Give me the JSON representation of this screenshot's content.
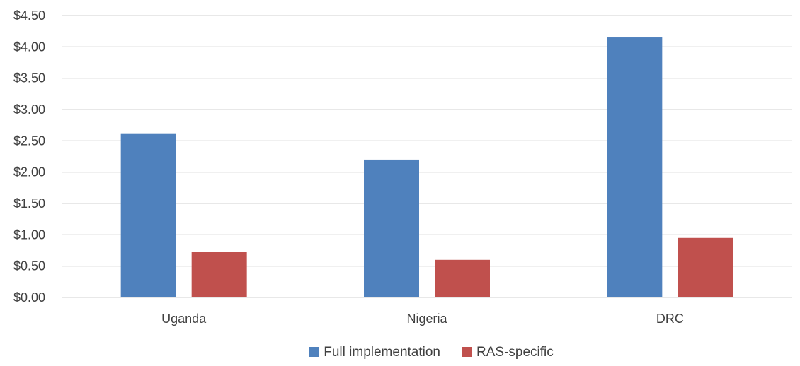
{
  "chart_data": {
    "type": "bar",
    "title": "",
    "xlabel": "",
    "ylabel": "",
    "categories": [
      "Uganda",
      "Nigeria",
      "DRC"
    ],
    "series": [
      {
        "name": "Full implementation",
        "color": "#4F81BD",
        "values": [
          2.62,
          2.2,
          4.15
        ]
      },
      {
        "name": "RAS-specific",
        "color": "#C0504D",
        "values": [
          0.73,
          0.6,
          0.95
        ]
      }
    ],
    "ylim": [
      0,
      4.5
    ],
    "yticks": [
      "$0.00",
      "$0.50",
      "$1.00",
      "$1.50",
      "$2.00",
      "$2.50",
      "$3.00",
      "$3.50",
      "$4.00",
      "$4.50"
    ],
    "ytick_values": [
      0,
      0.5,
      1.0,
      1.5,
      2.0,
      2.5,
      3.0,
      3.5,
      4.0,
      4.5
    ],
    "grid": true,
    "legend_position": "bottom"
  }
}
